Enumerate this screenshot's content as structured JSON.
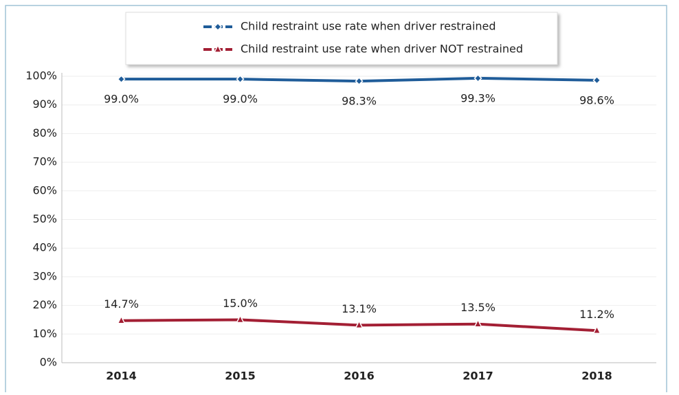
{
  "chart_data": {
    "type": "line",
    "categories": [
      "2014",
      "2015",
      "2016",
      "2017",
      "2018"
    ],
    "series": [
      {
        "name": "Child restraint use rate when driver restrained",
        "color": "#1f5c99",
        "marker": "diamond",
        "values": [
          99.0,
          99.0,
          98.3,
          99.3,
          98.6
        ],
        "value_labels": [
          "99.0%",
          "99.0%",
          "98.3%",
          "99.3%",
          "98.6%"
        ]
      },
      {
        "name": "Child restraint use rate when driver NOT restrained",
        "color": "#a31f34",
        "marker": "triangle",
        "values": [
          14.7,
          15.0,
          13.1,
          13.5,
          11.2
        ],
        "value_labels": [
          "14.7%",
          "15.0%",
          "13.1%",
          "13.5%",
          "11.2%"
        ]
      }
    ],
    "ylim": [
      0,
      100
    ],
    "yticks": [
      {
        "value": 0,
        "label": "0%"
      },
      {
        "value": 10,
        "label": "10%"
      },
      {
        "value": 20,
        "label": "20%"
      },
      {
        "value": 30,
        "label": "30%"
      },
      {
        "value": 40,
        "label": "40%"
      },
      {
        "value": 50,
        "label": "50%"
      },
      {
        "value": 60,
        "label": "60%"
      },
      {
        "value": 70,
        "label": "70%"
      },
      {
        "value": 80,
        "label": "80%"
      },
      {
        "value": 90,
        "label": "90%"
      },
      {
        "value": 100,
        "label": "100%"
      }
    ],
    "grid": true,
    "legend": "top"
  }
}
